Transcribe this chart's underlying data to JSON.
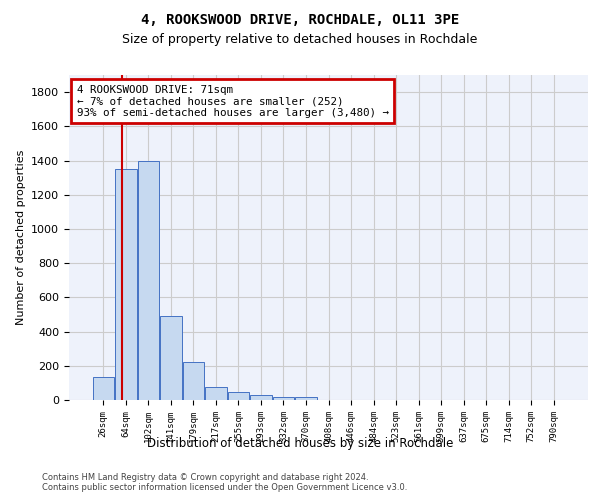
{
  "title": "4, ROOKSWOOD DRIVE, ROCHDALE, OL11 3PE",
  "subtitle": "Size of property relative to detached houses in Rochdale",
  "xlabel": "Distribution of detached houses by size in Rochdale",
  "ylabel": "Number of detached properties",
  "bar_values": [
    135,
    1350,
    1400,
    490,
    225,
    75,
    45,
    28,
    15,
    20,
    0,
    0,
    0,
    0,
    0,
    0,
    0,
    0,
    0,
    0,
    0
  ],
  "bar_labels": [
    "26sqm",
    "64sqm",
    "102sqm",
    "141sqm",
    "179sqm",
    "217sqm",
    "255sqm",
    "293sqm",
    "332sqm",
    "370sqm",
    "408sqm",
    "446sqm",
    "484sqm",
    "523sqm",
    "561sqm",
    "599sqm",
    "637sqm",
    "675sqm",
    "714sqm",
    "752sqm",
    "790sqm"
  ],
  "bar_color": "#c6d9f0",
  "bar_edge_color": "#4472c4",
  "grid_color": "#cccccc",
  "bg_color": "#eef2fb",
  "vline_color": "#cc0000",
  "vline_pos": 0.85,
  "annotation_title": "4 ROOKSWOOD DRIVE: 71sqm",
  "annotation_line1": "← 7% of detached houses are smaller (252)",
  "annotation_line2": "93% of semi-detached houses are larger (3,480) →",
  "annotation_box_color": "#cc0000",
  "ylim": [
    0,
    1900
  ],
  "yticks": [
    0,
    200,
    400,
    600,
    800,
    1000,
    1200,
    1400,
    1600,
    1800
  ],
  "footer": "Contains HM Land Registry data © Crown copyright and database right 2024.\nContains public sector information licensed under the Open Government Licence v3.0.",
  "fig_width": 6.0,
  "fig_height": 5.0
}
